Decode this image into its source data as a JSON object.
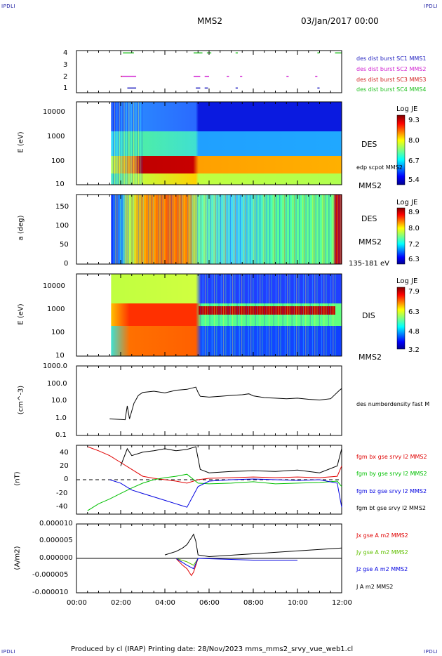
{
  "corners": {
    "tl": "IPDLI",
    "tr": "IPDLI",
    "bl": "IPDLI",
    "br": "IPDLI"
  },
  "header": {
    "spacecraft": "MMS2",
    "datetime": "03/Jan/2017 00:00"
  },
  "footer": {
    "text": "Produced by cl (IRAP)   Printing date: 28/Nov/2023   mms_mms2_srvy_vue_web1.cl"
  },
  "xaxis": {
    "ticks": [
      "00:00",
      "02:00",
      "04:00",
      "06:00",
      "08:00",
      "10:00",
      "12:00"
    ]
  },
  "panels": {
    "burst": {
      "yticks": [
        "4",
        "3",
        "2",
        "1"
      ],
      "legend": [
        {
          "text": "des dist burst SC1 MMS1",
          "color": "#2020c0"
        },
        {
          "text": "des dist burst SC2 MMS2",
          "color": "#d020d0"
        },
        {
          "text": "des dist burst SC3 MMS3",
          "color": "#d02020"
        },
        {
          "text": "des dist burst SC4 MMS4",
          "color": "#20c020"
        }
      ]
    },
    "des_e": {
      "ylabel": "E (eV)",
      "yticks": [
        "10000",
        "1000",
        "100",
        "10"
      ],
      "side": "DES",
      "note": "edp scpot MMS2",
      "sc": "MMS2",
      "cb_title": "Log JE",
      "cb_ticks": [
        "9.3",
        "8.0",
        "6.7",
        "5.4"
      ]
    },
    "des_pa": {
      "ylabel": "a (deg)",
      "yticks": [
        "150",
        "100",
        "50",
        "0"
      ],
      "side": "DES",
      "sc": "MMS2",
      "note": "135-181 eV",
      "cb_title": "Log JE",
      "cb_ticks": [
        "8.9",
        "8.0",
        "7.2",
        "6.3"
      ]
    },
    "dis_e": {
      "ylabel": "E (eV)",
      "yticks": [
        "10000",
        "1000",
        "100",
        "10"
      ],
      "side": "DIS",
      "sc": "MMS2",
      "cb_title": "Log JE",
      "cb_ticks": [
        "7.9",
        "6.3",
        "4.8",
        "3.2"
      ]
    },
    "density": {
      "ylabel": "(cm^-3)",
      "yticks": [
        "1000.0",
        "100.0",
        "10.0",
        "1.0",
        "0.1"
      ],
      "legend": "des numberdensity fast M"
    },
    "bfield": {
      "ylabel": "(nT)",
      "yticks": [
        "40",
        "20",
        "0",
        "-20",
        "-40"
      ],
      "legend": [
        {
          "text": "fgm bx gse srvy l2 MMS2",
          "color": "#e00000"
        },
        {
          "text": "fgm by gse srvy l2 MMS2",
          "color": "#00c000"
        },
        {
          "text": "fgm bz gse srvy l2 MMS2",
          "color": "#0000e0"
        },
        {
          "text": "fgm bt gse srvy l2 MMS2",
          "color": "#000000"
        }
      ]
    },
    "current": {
      "ylabel": "(A/m2)",
      "yticks": [
        "0.000010",
        "0.000005",
        "0.000000",
        "-0.000005",
        "-0.000010"
      ],
      "legend": [
        {
          "text": "Jx gse A m2 MMS2",
          "color": "#e00000"
        },
        {
          "text": "Jy gse A m2 MMS2",
          "color": "#60c000"
        },
        {
          "text": "Jz gse A m2 MMS2",
          "color": "#0000e0"
        },
        {
          "text": "J A m2 MMS2",
          "color": "#000000"
        }
      ]
    }
  },
  "chart_data": {
    "type": "line",
    "x_unit": "hours UT",
    "xlim": [
      0,
      12
    ],
    "density": {
      "x": [
        1.5,
        2.2,
        2.3,
        2.4,
        2.6,
        2.8,
        3.0,
        3.5,
        4.0,
        4.5,
        5.0,
        5.4,
        5.5,
        5.6,
        6.0,
        6.5,
        7.0,
        7.5,
        7.8,
        8.0,
        8.5,
        9.0,
        9.5,
        10.0,
        10.5,
        11.0,
        11.5,
        11.9,
        12.0
      ],
      "y": [
        0.9,
        0.8,
        5.0,
        0.9,
        7.0,
        20,
        30,
        35,
        28,
        40,
        45,
        60,
        30,
        18,
        16,
        18,
        20,
        22,
        25,
        19,
        15,
        14,
        13,
        14,
        12,
        11,
        13,
        40,
        50
      ],
      "ylim": [
        0.1,
        1000
      ],
      "scale": "log"
    },
    "bfield": {
      "ylim": [
        -50,
        50
      ],
      "series": [
        {
          "name": "fgm bx gse srvy l2 MMS2",
          "x": [
            0.5,
            1.0,
            1.5,
            2.0,
            2.5,
            3.0,
            3.5,
            4.0,
            4.5,
            5.0,
            5.5,
            6.0,
            7.0,
            8.0,
            9.0,
            10.0,
            11.0,
            11.8,
            12.0
          ],
          "y": [
            48,
            42,
            35,
            25,
            15,
            5,
            2,
            0,
            -2,
            -5,
            0,
            2,
            3,
            4,
            3,
            4,
            3,
            5,
            20
          ]
        },
        {
          "name": "fgm by gse srvy l2 MMS2",
          "x": [
            0.5,
            1.0,
            1.5,
            2.0,
            2.5,
            3.0,
            3.5,
            4.0,
            4.5,
            5.0,
            5.5,
            6.0,
            7.0,
            8.0,
            9.0,
            10.0,
            11.0,
            11.8,
            12.0
          ],
          "y": [
            -45,
            -35,
            -28,
            -20,
            -12,
            -5,
            0,
            3,
            5,
            8,
            -5,
            -6,
            -5,
            -3,
            -6,
            -5,
            -4,
            -2,
            -10
          ]
        },
        {
          "name": "fgm bz gse srvy l2 MMS2",
          "x": [
            1.5,
            2.0,
            2.5,
            3.0,
            3.5,
            4.0,
            4.5,
            5.0,
            5.5,
            6.0,
            7.0,
            8.0,
            9.0,
            10.0,
            11.0,
            11.8,
            12.0
          ],
          "y": [
            0,
            -5,
            -15,
            -20,
            -25,
            -30,
            -35,
            -40,
            -10,
            -2,
            0,
            1,
            0,
            -1,
            0,
            -5,
            -40
          ]
        },
        {
          "name": "fgm bt gse srvy l2 MMS2",
          "x": [
            2.0,
            2.3,
            2.5,
            3.0,
            3.5,
            4.0,
            4.5,
            5.0,
            5.4,
            5.6,
            6.0,
            7.0,
            8.0,
            9.0,
            10.0,
            11.0,
            11.8,
            12.0
          ],
          "y": [
            20,
            45,
            35,
            40,
            42,
            45,
            42,
            44,
            48,
            15,
            10,
            12,
            13,
            12,
            14,
            10,
            20,
            45
          ]
        }
      ]
    },
    "current": {
      "ylim": [
        -1e-05,
        1e-05
      ],
      "series": [
        {
          "name": "Jx gse A m2 MMS2",
          "x": [
            4.5,
            4.8,
            5.0,
            5.2,
            5.3,
            5.5
          ],
          "y": [
            0,
            -2e-06,
            -3e-06,
            -5e-06,
            -4e-06,
            0
          ]
        },
        {
          "name": "Jy gse A m2 MMS2",
          "x": [
            4.5,
            5.0,
            5.3,
            5.5
          ],
          "y": [
            0,
            -1e-06,
            -2e-06,
            0
          ]
        },
        {
          "name": "Jz gse A m2 MMS2",
          "x": [
            4.5,
            5.0,
            5.3,
            5.5,
            8.0,
            10.0
          ],
          "y": [
            0,
            -2e-06,
            -3e-06,
            0,
            -5e-07,
            -5e-07
          ]
        },
        {
          "name": "J A m2 MMS2",
          "x": [
            4.0,
            4.5,
            4.8,
            5.0,
            5.2,
            5.3,
            5.4,
            5.5,
            6.0,
            12.0
          ],
          "y": [
            1e-06,
            2e-06,
            3e-06,
            4e-06,
            6e-06,
            7e-06,
            5e-06,
            1e-06,
            5e-07,
            3e-06
          ]
        }
      ]
    },
    "spectrograms": {
      "des_energy_dominant_eV": {
        "x": [
          1.5,
          2.5,
          3.0,
          4.0,
          5.0,
          5.5,
          6.0,
          8.0,
          10.0,
          12.0
        ],
        "y": [
          300,
          200,
          60,
          60,
          60,
          200,
          60,
          60,
          60,
          60
        ]
      },
      "dis_energy_dominant_eV": {
        "x": [
          1.5,
          2.5,
          3.0,
          4.0,
          5.0,
          5.5,
          6.0,
          8.0,
          10.0,
          12.0
        ],
        "y": [
          2000,
          500,
          400,
          400,
          400,
          800,
          800,
          800,
          1000,
          1000
        ]
      }
    }
  }
}
